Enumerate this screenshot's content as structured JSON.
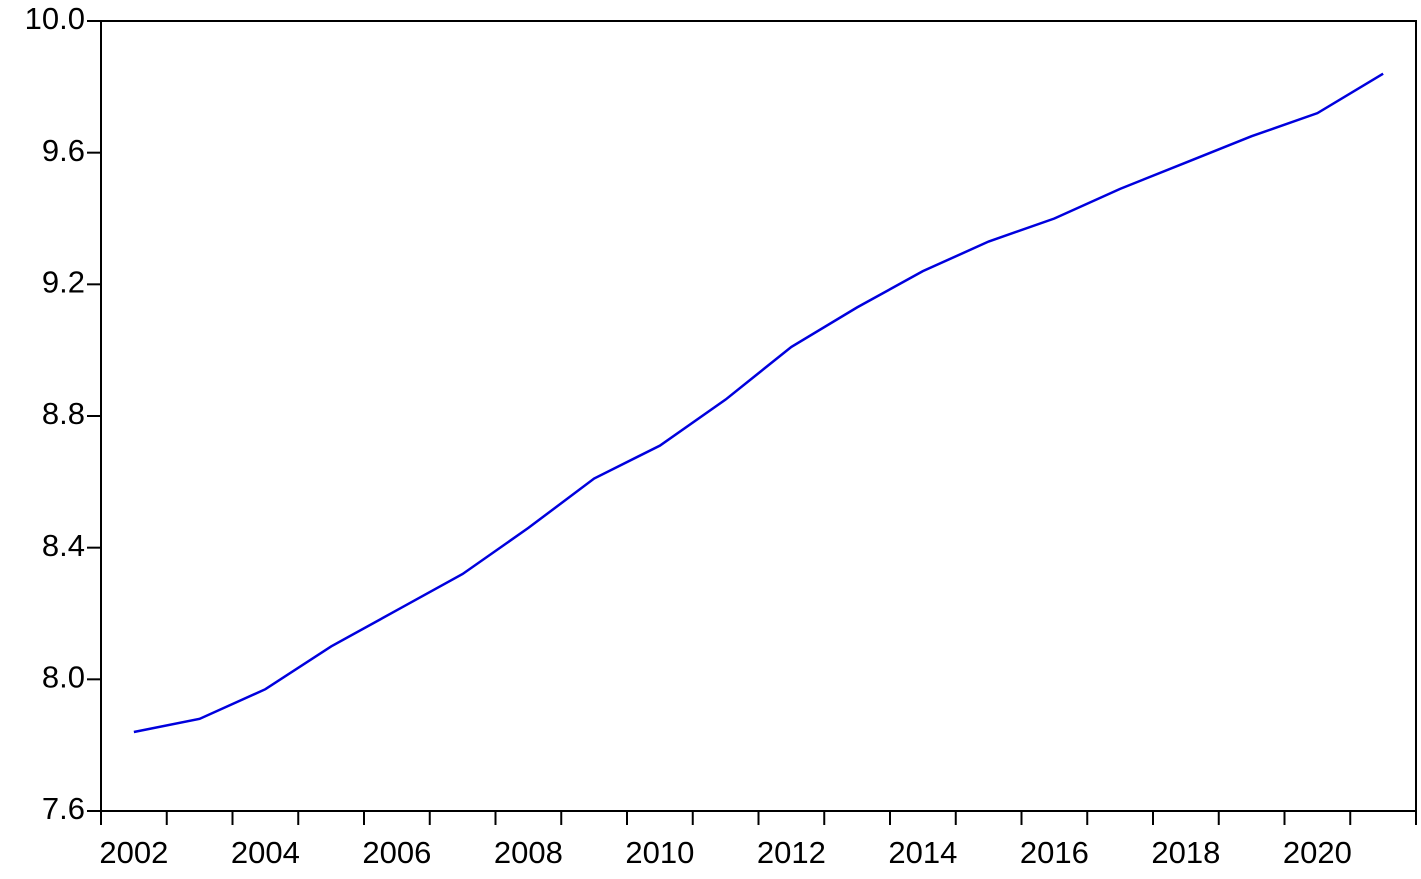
{
  "chart_data": {
    "type": "line",
    "categories": [
      "2002",
      null,
      "2004",
      null,
      "2006",
      null,
      "2008",
      null,
      "2010",
      null,
      "2012",
      null,
      "2014",
      null,
      "2016",
      null,
      "2018",
      null,
      "2020",
      null
    ],
    "series": [
      {
        "color": "#0000dd",
        "values": [
          7.84,
          7.88,
          7.97,
          8.1,
          8.21,
          8.32,
          8.46,
          8.61,
          8.71,
          8.85,
          9.01,
          9.13,
          9.24,
          9.33,
          9.4,
          9.49,
          9.57,
          9.65,
          9.72,
          9.84
        ]
      }
    ],
    "ylim": [
      7.6,
      10.0
    ],
    "yticks": [
      7.6,
      {
        "value": 8,
        "label": "8.0"
      },
      8.4,
      8.8,
      9.2,
      9.6,
      {
        "value": 10,
        "label": "10.0"
      }
    ],
    "grid": false
  }
}
